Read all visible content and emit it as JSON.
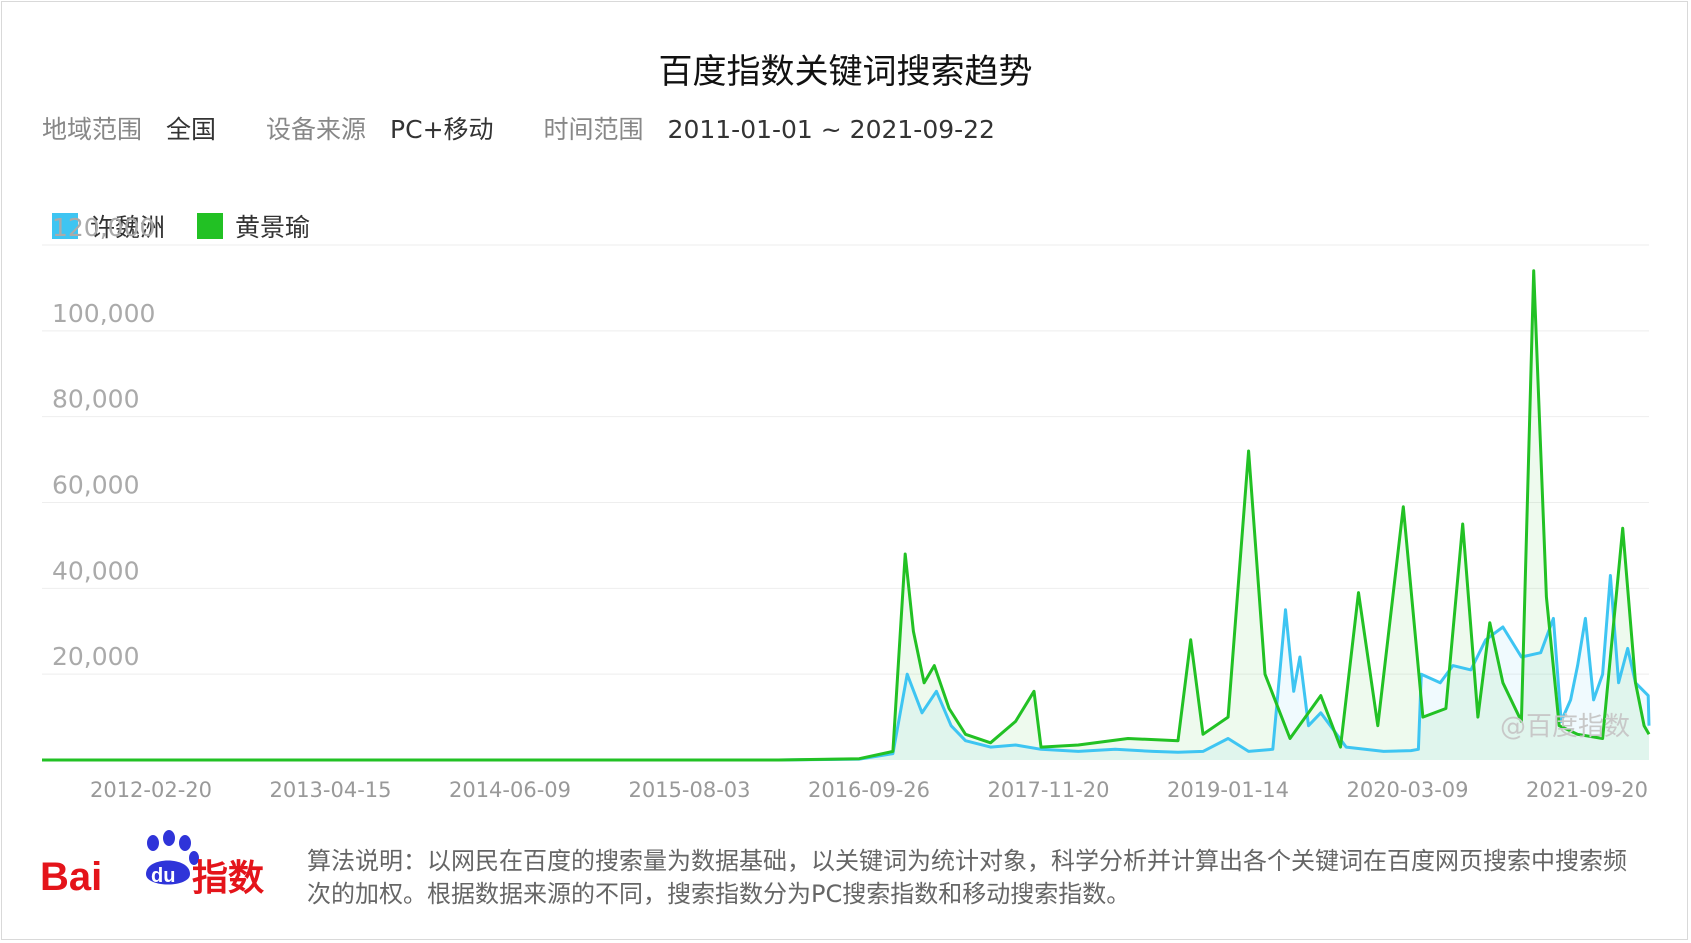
{
  "title": "百度指数关键词搜索趋势",
  "filters": [
    {
      "label": "地域范围",
      "value": "全国"
    },
    {
      "label": "设备来源",
      "value": "PC+移动"
    },
    {
      "label": "时间范围",
      "value": "2011-01-01 ~ 2021-09-22"
    }
  ],
  "watermark": "@百度指数",
  "logo": {
    "text_bai": "Bai",
    "text_du": "du",
    "text_index": "指数"
  },
  "footer": {
    "text": "算法说明：以网民在百度的搜索量为数据基础，以关键词为统计对象，科学分析并计算出各个关键词在百度网页搜索中搜索频次的加权。根据数据来源的不同，搜索指数分为PC搜索指数和移动搜索指数。"
  },
  "colors": {
    "series_1": "#3ec5f2",
    "series_2": "#22c124",
    "grid": "#eeeeee",
    "tick_text": "#aaaaaa"
  },
  "chart_data": {
    "type": "line",
    "title": "百度指数关键词搜索趋势",
    "xlabel": "",
    "ylabel": "",
    "x_tick_labels": [
      "2012-02-20",
      "2013-04-15",
      "2014-06-09",
      "2015-08-03",
      "2016-09-26",
      "2017-11-20",
      "2019-01-14",
      "2020-03-09",
      "2021-09-20"
    ],
    "y_tick_labels": [
      "20,000",
      "40,000",
      "60,000",
      "80,000",
      "100,000",
      "120,000"
    ],
    "y_ticks": [
      20000,
      40000,
      60000,
      80000,
      100000,
      120000
    ],
    "ylim": [
      0,
      120000
    ],
    "xlim": [
      "2011-01-01",
      "2021-09-22"
    ],
    "grid": true,
    "legend_position": "top-left",
    "series": [
      {
        "name": "许魏洲",
        "color": "#3ec5f2",
        "points": [
          [
            "2011-01-01",
            0
          ],
          [
            "2015-12-01",
            0
          ],
          [
            "2016-06-15",
            200
          ],
          [
            "2016-09-05",
            1500
          ],
          [
            "2016-10-10",
            20000
          ],
          [
            "2016-11-15",
            11000
          ],
          [
            "2016-12-20",
            16000
          ],
          [
            "2017-01-25",
            8000
          ],
          [
            "2017-03-01",
            4500
          ],
          [
            "2017-05-01",
            3000
          ],
          [
            "2017-07-01",
            3500
          ],
          [
            "2017-09-01",
            2500
          ],
          [
            "2017-12-01",
            2000
          ],
          [
            "2018-03-01",
            2500
          ],
          [
            "2018-06-01",
            2000
          ],
          [
            "2018-08-01",
            1800
          ],
          [
            "2018-10-01",
            2000
          ],
          [
            "2018-12-01",
            5000
          ],
          [
            "2019-01-20",
            2000
          ],
          [
            "2019-03-20",
            2500
          ],
          [
            "2019-04-20",
            35000
          ],
          [
            "2019-05-10",
            16000
          ],
          [
            "2019-05-25",
            24000
          ],
          [
            "2019-06-15",
            8000
          ],
          [
            "2019-07-15",
            11000
          ],
          [
            "2019-09-15",
            3000
          ],
          [
            "2019-12-15",
            2000
          ],
          [
            "2020-02-20",
            2200
          ],
          [
            "2020-03-09",
            2500
          ],
          [
            "2020-03-16",
            20000
          ],
          [
            "2020-05-01",
            18000
          ],
          [
            "2020-06-01",
            22000
          ],
          [
            "2020-07-15",
            21000
          ],
          [
            "2020-08-20",
            28000
          ],
          [
            "2020-10-01",
            31000
          ],
          [
            "2020-11-15",
            24000
          ],
          [
            "2021-01-01",
            25000
          ],
          [
            "2021-02-01",
            33000
          ],
          [
            "2021-02-20",
            9000
          ],
          [
            "2021-03-15",
            14000
          ],
          [
            "2021-04-01",
            22000
          ],
          [
            "2021-04-20",
            33000
          ],
          [
            "2021-05-10",
            14000
          ],
          [
            "2021-06-01",
            20000
          ],
          [
            "2021-06-20",
            43000
          ],
          [
            "2021-07-10",
            18000
          ],
          [
            "2021-08-01",
            26000
          ],
          [
            "2021-08-20",
            18000
          ],
          [
            "2021-09-20",
            15000
          ],
          [
            "2021-09-22",
            8000
          ]
        ]
      },
      {
        "name": "黄景瑜",
        "color": "#22c124",
        "points": [
          [
            "2011-01-01",
            0
          ],
          [
            "2015-12-01",
            0
          ],
          [
            "2016-06-15",
            300
          ],
          [
            "2016-09-05",
            2000
          ],
          [
            "2016-10-05",
            48000
          ],
          [
            "2016-10-25",
            30000
          ],
          [
            "2016-11-20",
            18000
          ],
          [
            "2016-12-15",
            22000
          ],
          [
            "2017-01-20",
            12000
          ],
          [
            "2017-03-01",
            6000
          ],
          [
            "2017-05-01",
            4000
          ],
          [
            "2017-07-01",
            9000
          ],
          [
            "2017-08-15",
            16000
          ],
          [
            "2017-09-01",
            3000
          ],
          [
            "2017-12-01",
            3500
          ],
          [
            "2018-04-01",
            5000
          ],
          [
            "2018-08-01",
            4500
          ],
          [
            "2018-09-01",
            28000
          ],
          [
            "2018-10-01",
            6000
          ],
          [
            "2018-12-01",
            10000
          ],
          [
            "2019-01-20",
            72000
          ],
          [
            "2019-03-01",
            20000
          ],
          [
            "2019-05-01",
            5000
          ],
          [
            "2019-07-15",
            15000
          ],
          [
            "2019-09-01",
            3000
          ],
          [
            "2019-10-15",
            39000
          ],
          [
            "2019-12-01",
            8000
          ],
          [
            "2020-02-01",
            59000
          ],
          [
            "2020-03-20",
            10000
          ],
          [
            "2020-05-15",
            12000
          ],
          [
            "2020-06-25",
            55000
          ],
          [
            "2020-08-01",
            10000
          ],
          [
            "2020-08-30",
            32000
          ],
          [
            "2020-10-01",
            18000
          ],
          [
            "2020-11-15",
            9000
          ],
          [
            "2020-12-15",
            114000
          ],
          [
            "2021-01-15",
            38000
          ],
          [
            "2021-02-15",
            8000
          ],
          [
            "2021-04-01",
            6000
          ],
          [
            "2021-06-01",
            5000
          ],
          [
            "2021-07-20",
            54000
          ],
          [
            "2021-08-20",
            18000
          ],
          [
            "2021-09-10",
            8000
          ],
          [
            "2021-09-22",
            6000
          ]
        ]
      }
    ]
  }
}
